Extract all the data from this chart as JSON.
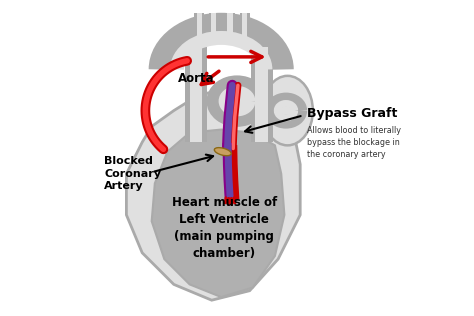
{
  "bg_color": "#ffffff",
  "heart_outline_color": "#aaaaaa",
  "heart_fill_color": "#e0e0e0",
  "ventricle_fill_color": "#b0b0b0",
  "text_color": "#000000",
  "label_aorta": "Aorta",
  "label_bypass": "Bypass Graft",
  "label_bypass_sub": "Allows blood to literally\nbypass the blockage in\nthe coronary artery",
  "label_blocked": "Blocked\nCoronary\nArtery",
  "label_ventricle": "Heart muscle of\nLeft Ventricle\n(main pumping\nchamber)",
  "red": "#cc0000",
  "purple": "#880088",
  "blue_purple": "#6644aa",
  "tan": "#c8a060",
  "dark_tan": "#8b6914"
}
